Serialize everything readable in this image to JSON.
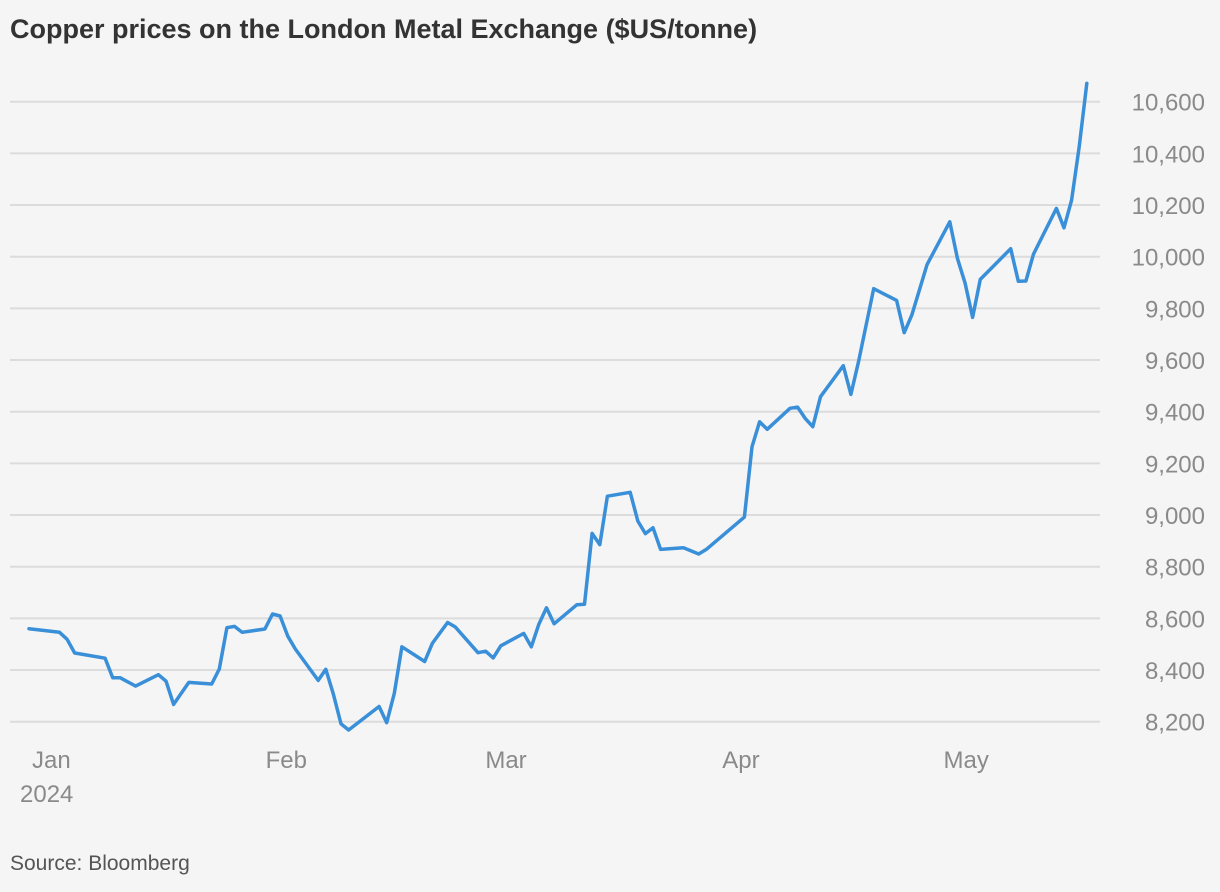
{
  "chart_data": {
    "type": "line",
    "title": "Copper prices on the London Metal Exchange ($US/tonne)",
    "source": "Source: Bloomberg",
    "xlabel": "",
    "ylabel": "",
    "ylim": [
      8200,
      10600
    ],
    "yticks": [
      8200,
      8400,
      8600,
      8800,
      9000,
      9200,
      9400,
      9600,
      9800,
      10000,
      10200,
      10400,
      10600
    ],
    "ytick_labels": [
      "8,200",
      "8,400",
      "8,600",
      "8,800",
      "9,000",
      "9,200",
      "9,400",
      "9,600",
      "9,800",
      "10,000",
      "10,200",
      "10,400",
      "10,600"
    ],
    "xticks": [
      {
        "date": "2024-01-01",
        "label": "Jan",
        "sublabel": "2024"
      },
      {
        "date": "2024-02-01",
        "label": "Feb"
      },
      {
        "date": "2024-03-01",
        "label": "Mar"
      },
      {
        "date": "2024-04-01",
        "label": "Apr"
      },
      {
        "date": "2024-05-01",
        "label": "May"
      }
    ],
    "grid": true,
    "y_axis_side": "right",
    "line_color": "#3a8fd9",
    "x": [
      "2024-01-02",
      "2024-01-06",
      "2024-01-07",
      "2024-01-08",
      "2024-01-12",
      "2024-01-13",
      "2024-01-14",
      "2024-01-16",
      "2024-01-19",
      "2024-01-20",
      "2024-01-21",
      "2024-01-23",
      "2024-01-26",
      "2024-01-27",
      "2024-01-28",
      "2024-01-29",
      "2024-01-30",
      "2024-02-02",
      "2024-02-03",
      "2024-02-04",
      "2024-02-05",
      "2024-02-06",
      "2024-02-09",
      "2024-02-10",
      "2024-02-11",
      "2024-02-12",
      "2024-02-13",
      "2024-02-17",
      "2024-02-18",
      "2024-02-19",
      "2024-02-20",
      "2024-02-23",
      "2024-02-24",
      "2024-02-26",
      "2024-02-27",
      "2024-03-01",
      "2024-03-02",
      "2024-03-03",
      "2024-03-04",
      "2024-03-07",
      "2024-03-08",
      "2024-03-09",
      "2024-03-10",
      "2024-03-11",
      "2024-03-14",
      "2024-03-15",
      "2024-03-16",
      "2024-03-17",
      "2024-03-18",
      "2024-03-21",
      "2024-03-22",
      "2024-03-23",
      "2024-03-24",
      "2024-03-25",
      "2024-03-28",
      "2024-03-30",
      "2024-03-31",
      "2024-04-05",
      "2024-04-06",
      "2024-04-07",
      "2024-04-08",
      "2024-04-11",
      "2024-04-12",
      "2024-04-13",
      "2024-04-14",
      "2024-04-15",
      "2024-04-18",
      "2024-04-19",
      "2024-04-20",
      "2024-04-22",
      "2024-04-25",
      "2024-04-26",
      "2024-04-27",
      "2024-04-28",
      "2024-04-29",
      "2024-05-02",
      "2024-05-03",
      "2024-05-04",
      "2024-05-05",
      "2024-05-06",
      "2024-05-10",
      "2024-05-11",
      "2024-05-12",
      "2024-05-13",
      "2024-05-16",
      "2024-05-17",
      "2024-05-18",
      "2024-05-19",
      "2024-05-20"
    ],
    "series": [
      {
        "values": [
          8560,
          8546,
          8519,
          8466,
          8446,
          8370,
          8370,
          8338,
          8382,
          8357,
          8267,
          8352,
          8346,
          8404,
          8564,
          8569,
          8546,
          8559,
          8617,
          8609,
          8531,
          8481,
          8360,
          8403,
          8306,
          8192,
          8168,
          8259,
          8196,
          8310,
          8490,
          8433,
          8503,
          8584,
          8567,
          8467,
          8473,
          8447,
          8494,
          8542,
          8490,
          8578,
          8641,
          8579,
          8653,
          8655,
          8929,
          8885,
          9073,
          9088,
          8977,
          8928,
          8951,
          8867,
          8873,
          8849,
          8867,
          8992,
          9264,
          9361,
          9332,
          9413,
          9418,
          9374,
          9342,
          9458,
          9578,
          9467,
          9593,
          9876,
          9831,
          9706,
          9774,
          9871,
          9969,
          10135,
          9994,
          9899,
          9765,
          9912,
          10031,
          9905,
          9906,
          10010,
          10187,
          10112,
          10219,
          10426,
          10671
        ]
      }
    ]
  }
}
